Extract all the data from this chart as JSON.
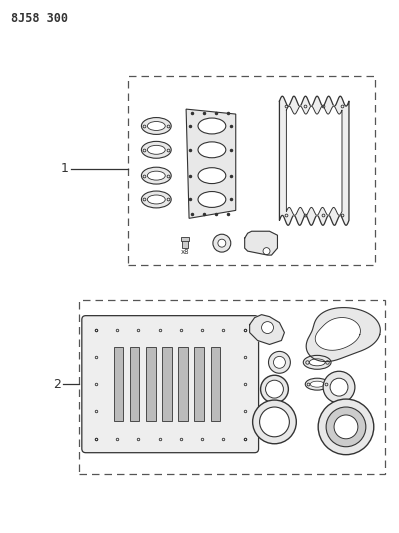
{
  "title": "8J58 300",
  "background_color": "#ffffff",
  "line_color": "#333333",
  "dash_color": "#555555",
  "label1": "1",
  "label2": "2",
  "figsize": [
    3.99,
    5.33
  ],
  "dpi": 100
}
